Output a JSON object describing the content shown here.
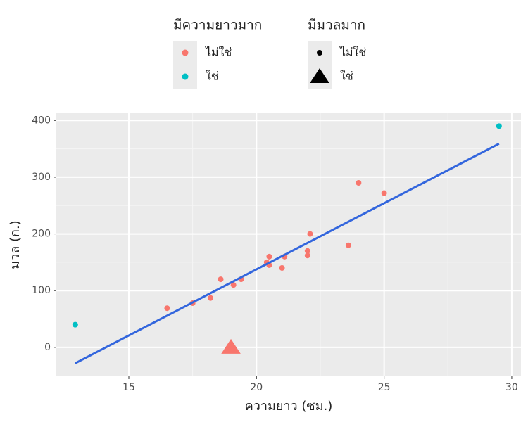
{
  "chart_data": {
    "type": "scatter",
    "x_label": "ความยาว (ซม.)",
    "y_label": "มวล (ก.)",
    "xlim": [
      12.16,
      30.36
    ],
    "ylim": [
      -51,
      414
    ],
    "xticks": [
      15,
      20,
      25,
      30
    ],
    "yticks": [
      0,
      100,
      200,
      300,
      400
    ],
    "grid": true,
    "legends": [
      {
        "title": "มีความยาวมาก",
        "items": [
          {
            "label": "ไม่ใช่",
            "color": "#f8766d"
          },
          {
            "label": "ใช่",
            "color": "#00bfc4"
          }
        ]
      },
      {
        "title": "มีมวลมาก",
        "items": [
          {
            "label": "ไม่ใช่",
            "shape": "circle"
          },
          {
            "label": "ใช่",
            "shape": "triangle"
          }
        ]
      }
    ],
    "series": [
      {
        "color": "#f8766d",
        "shape": "circle",
        "x": [
          16.5,
          17.5,
          18.2,
          18.6,
          19.1,
          19.4,
          20.4,
          20.5,
          20.5,
          21.1,
          21.0,
          22.1,
          22.0,
          22.0,
          23.6,
          24.0,
          25.0
        ],
        "y": [
          69,
          78,
          87,
          120,
          110,
          120,
          150,
          160,
          145,
          160,
          140,
          200,
          170,
          162,
          180,
          290,
          272
        ]
      },
      {
        "color": "#00bfc4",
        "shape": "circle",
        "x": [
          12.9,
          29.5
        ],
        "y": [
          40,
          390
        ]
      },
      {
        "color": "#f8766d",
        "shape": "triangle",
        "x": [
          19.0
        ],
        "y": [
          0
        ]
      }
    ],
    "fit": {
      "color": "#3366dd",
      "x": [
        12.9,
        29.5
      ],
      "y": [
        -28,
        359
      ]
    }
  }
}
